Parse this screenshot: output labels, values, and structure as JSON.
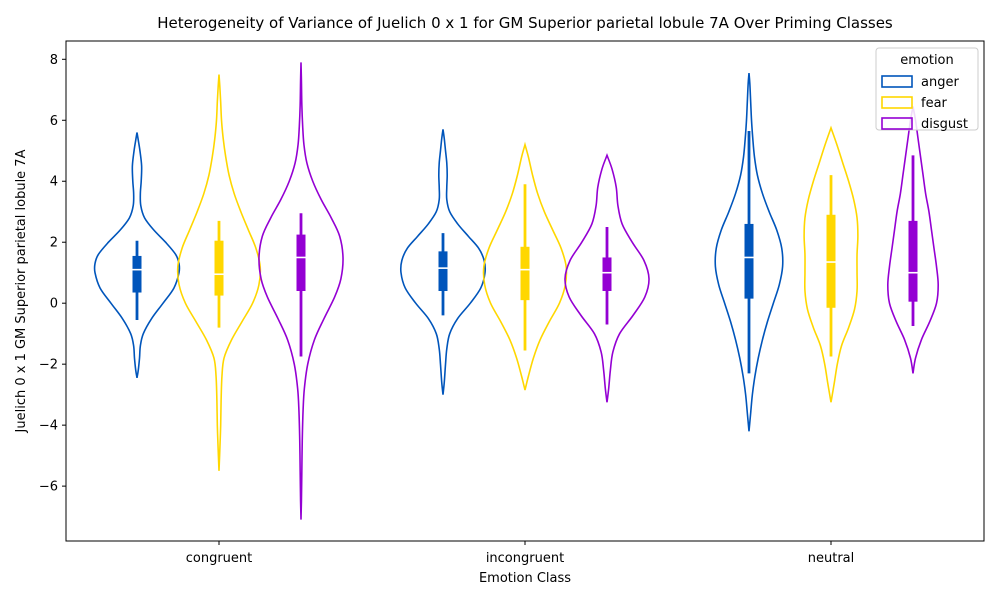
{
  "chart_data": {
    "type": "violin",
    "title": "Heterogeneity of Variance of Juelich 0 x 1 for GM Superior parietal lobule 7A Over Priming Classes",
    "xlabel": "Emotion Class",
    "ylabel": "Juelich 0 x 1 GM Superior parietal lobule 7A",
    "categories": [
      "congruent",
      "incongruent",
      "neutral"
    ],
    "ylim": [
      -7.8,
      8.6
    ],
    "yticks": [
      -6,
      -4,
      -2,
      0,
      2,
      4,
      6,
      8
    ],
    "grid": false,
    "legend": {
      "title": "emotion",
      "position": "top-right"
    },
    "series": [
      {
        "name": "anger",
        "color": "#0055BB",
        "groups": [
          {
            "category": "congruent",
            "min": -2.45,
            "max": 5.6,
            "q1": 0.35,
            "median": 1.1,
            "q3": 1.55,
            "whisker_low": -0.55,
            "whisker_high": 2.05,
            "density": [
              [
                -2.45,
                0.0
              ],
              [
                -2.2,
                0.03
              ],
              [
                -1.8,
                0.06
              ],
              [
                -1.4,
                0.08
              ],
              [
                -1.0,
                0.15
              ],
              [
                -0.5,
                0.35
              ],
              [
                0.0,
                0.62
              ],
              [
                0.5,
                0.88
              ],
              [
                1.0,
                1.0
              ],
              [
                1.3,
                1.0
              ],
              [
                1.6,
                0.92
              ],
              [
                2.0,
                0.68
              ],
              [
                2.4,
                0.4
              ],
              [
                2.8,
                0.18
              ],
              [
                3.2,
                0.09
              ],
              [
                3.6,
                0.08
              ],
              [
                4.0,
                0.1
              ],
              [
                4.5,
                0.11
              ],
              [
                5.0,
                0.07
              ],
              [
                5.35,
                0.03
              ],
              [
                5.6,
                0.0
              ]
            ]
          },
          {
            "category": "incongruent",
            "min": -3.0,
            "max": 5.7,
            "q1": 0.4,
            "median": 1.15,
            "q3": 1.7,
            "whisker_low": -0.4,
            "whisker_high": 2.3,
            "density": [
              [
                -3.0,
                0.0
              ],
              [
                -2.6,
                0.03
              ],
              [
                -2.0,
                0.06
              ],
              [
                -1.5,
                0.09
              ],
              [
                -1.0,
                0.16
              ],
              [
                -0.5,
                0.35
              ],
              [
                0.0,
                0.65
              ],
              [
                0.5,
                0.9
              ],
              [
                1.0,
                1.0
              ],
              [
                1.4,
                0.98
              ],
              [
                1.8,
                0.85
              ],
              [
                2.2,
                0.6
              ],
              [
                2.6,
                0.35
              ],
              [
                3.0,
                0.16
              ],
              [
                3.4,
                0.09
              ],
              [
                3.8,
                0.09
              ],
              [
                4.2,
                0.1
              ],
              [
                4.6,
                0.09
              ],
              [
                5.0,
                0.06
              ],
              [
                5.4,
                0.03
              ],
              [
                5.7,
                0.0
              ]
            ]
          },
          {
            "category": "neutral",
            "min": -4.2,
            "max": 7.55,
            "q1": 0.15,
            "median": 1.5,
            "q3": 2.6,
            "whisker_low": -2.3,
            "whisker_high": 5.65,
            "density": [
              [
                -4.2,
                0.0
              ],
              [
                -3.6,
                0.04
              ],
              [
                -3.0,
                0.08
              ],
              [
                -2.4,
                0.14
              ],
              [
                -1.8,
                0.22
              ],
              [
                -1.2,
                0.32
              ],
              [
                -0.6,
                0.44
              ],
              [
                0.0,
                0.58
              ],
              [
                0.6,
                0.72
              ],
              [
                1.2,
                0.8
              ],
              [
                1.8,
                0.78
              ],
              [
                2.4,
                0.66
              ],
              [
                3.0,
                0.48
              ],
              [
                3.6,
                0.32
              ],
              [
                4.2,
                0.2
              ],
              [
                4.8,
                0.13
              ],
              [
                5.4,
                0.09
              ],
              [
                6.0,
                0.06
              ],
              [
                6.6,
                0.04
              ],
              [
                7.2,
                0.02
              ],
              [
                7.55,
                0.0
              ]
            ]
          }
        ]
      },
      {
        "name": "fear",
        "color": "#FFD700",
        "groups": [
          {
            "category": "congruent",
            "min": -5.5,
            "max": 7.5,
            "q1": 0.25,
            "median": 0.95,
            "q3": 2.05,
            "whisker_low": -0.8,
            "whisker_high": 2.7,
            "density": [
              [
                -5.5,
                0.0
              ],
              [
                -4.8,
                0.02
              ],
              [
                -4.0,
                0.04
              ],
              [
                -3.2,
                0.05
              ],
              [
                -2.4,
                0.07
              ],
              [
                -1.8,
                0.12
              ],
              [
                -1.2,
                0.3
              ],
              [
                -0.6,
                0.55
              ],
              [
                0.0,
                0.8
              ],
              [
                0.6,
                0.95
              ],
              [
                1.2,
                0.98
              ],
              [
                1.8,
                0.88
              ],
              [
                2.4,
                0.7
              ],
              [
                3.0,
                0.52
              ],
              [
                3.6,
                0.36
              ],
              [
                4.2,
                0.24
              ],
              [
                4.8,
                0.16
              ],
              [
                5.4,
                0.1
              ],
              [
                6.0,
                0.06
              ],
              [
                6.6,
                0.04
              ],
              [
                7.1,
                0.02
              ],
              [
                7.5,
                0.0
              ]
            ]
          },
          {
            "category": "incongruent",
            "min": -2.85,
            "max": 5.2,
            "q1": 0.1,
            "median": 1.1,
            "q3": 1.85,
            "whisker_low": -1.55,
            "whisker_high": 3.9,
            "density": [
              [
                -2.85,
                0.0
              ],
              [
                -2.4,
                0.08
              ],
              [
                -1.8,
                0.2
              ],
              [
                -1.2,
                0.36
              ],
              [
                -0.6,
                0.58
              ],
              [
                0.0,
                0.82
              ],
              [
                0.6,
                0.96
              ],
              [
                1.2,
                0.98
              ],
              [
                1.8,
                0.86
              ],
              [
                2.4,
                0.66
              ],
              [
                3.0,
                0.46
              ],
              [
                3.6,
                0.3
              ],
              [
                4.2,
                0.18
              ],
              [
                4.8,
                0.08
              ],
              [
                5.2,
                0.0
              ]
            ]
          },
          {
            "category": "neutral",
            "min": -3.25,
            "max": 5.75,
            "q1": -0.15,
            "median": 1.35,
            "q3": 2.9,
            "whisker_low": -1.75,
            "whisker_high": 4.2,
            "density": [
              [
                -3.25,
                0.0
              ],
              [
                -2.6,
                0.08
              ],
              [
                -2.0,
                0.15
              ],
              [
                -1.4,
                0.25
              ],
              [
                -0.8,
                0.42
              ],
              [
                -0.2,
                0.56
              ],
              [
                0.4,
                0.62
              ],
              [
                1.0,
                0.62
              ],
              [
                1.6,
                0.62
              ],
              [
                2.2,
                0.64
              ],
              [
                2.8,
                0.62
              ],
              [
                3.4,
                0.54
              ],
              [
                4.0,
                0.42
              ],
              [
                4.6,
                0.28
              ],
              [
                5.2,
                0.14
              ],
              [
                5.75,
                0.0
              ]
            ]
          }
        ]
      },
      {
        "name": "disgust",
        "color": "#9400D3",
        "groups": [
          {
            "category": "congruent",
            "min": -7.1,
            "max": 7.9,
            "q1": 0.4,
            "median": 1.5,
            "q3": 2.25,
            "whisker_low": -1.75,
            "whisker_high": 2.95,
            "density": [
              [
                -7.1,
                0.0
              ],
              [
                -6.5,
                0.01
              ],
              [
                -5.5,
                0.02
              ],
              [
                -4.5,
                0.03
              ],
              [
                -3.5,
                0.05
              ],
              [
                -2.8,
                0.08
              ],
              [
                -2.0,
                0.16
              ],
              [
                -1.2,
                0.32
              ],
              [
                -0.5,
                0.55
              ],
              [
                0.2,
                0.8
              ],
              [
                0.8,
                0.95
              ],
              [
                1.5,
                1.0
              ],
              [
                2.2,
                0.92
              ],
              [
                2.8,
                0.72
              ],
              [
                3.4,
                0.48
              ],
              [
                4.0,
                0.28
              ],
              [
                4.6,
                0.14
              ],
              [
                5.2,
                0.07
              ],
              [
                5.8,
                0.04
              ],
              [
                6.5,
                0.02
              ],
              [
                7.3,
                0.01
              ],
              [
                7.9,
                0.0
              ]
            ]
          },
          {
            "category": "incongruent",
            "min": -3.25,
            "max": 4.85,
            "q1": 0.4,
            "median": 1.0,
            "q3": 1.5,
            "whisker_low": -0.7,
            "whisker_high": 2.5,
            "density": [
              [
                -3.25,
                0.0
              ],
              [
                -2.8,
                0.04
              ],
              [
                -2.2,
                0.08
              ],
              [
                -1.6,
                0.14
              ],
              [
                -1.0,
                0.3
              ],
              [
                -0.4,
                0.62
              ],
              [
                0.2,
                0.9
              ],
              [
                0.8,
                1.0
              ],
              [
                1.4,
                0.88
              ],
              [
                2.0,
                0.6
              ],
              [
                2.6,
                0.36
              ],
              [
                3.2,
                0.26
              ],
              [
                3.8,
                0.22
              ],
              [
                4.4,
                0.12
              ],
              [
                4.85,
                0.0
              ]
            ]
          },
          {
            "category": "neutral",
            "min": -2.3,
            "max": 6.45,
            "q1": 0.05,
            "median": 1.0,
            "q3": 2.7,
            "whisker_low": -0.75,
            "whisker_high": 4.85,
            "density": [
              [
                -2.3,
                0.0
              ],
              [
                -1.8,
                0.06
              ],
              [
                -1.2,
                0.2
              ],
              [
                -0.6,
                0.4
              ],
              [
                0.0,
                0.56
              ],
              [
                0.6,
                0.6
              ],
              [
                1.2,
                0.56
              ],
              [
                1.8,
                0.5
              ],
              [
                2.4,
                0.44
              ],
              [
                3.0,
                0.38
              ],
              [
                3.6,
                0.3
              ],
              [
                4.2,
                0.24
              ],
              [
                4.8,
                0.18
              ],
              [
                5.4,
                0.12
              ],
              [
                6.0,
                0.06
              ],
              [
                6.45,
                0.0
              ]
            ]
          }
        ]
      }
    ]
  }
}
